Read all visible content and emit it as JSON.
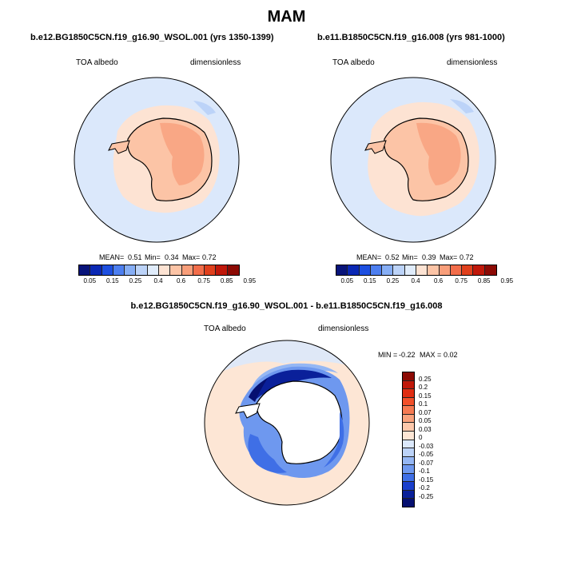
{
  "title": "MAM",
  "panel1": {
    "run": "b.e12.BG1850C5CN.f19_g16.90_WSOL.001 (yrs 1350-1399)",
    "variable": "TOA albedo",
    "units": "dimensionless",
    "mean_label": "MEAN=",
    "mean": "0.51",
    "min_label": "Min=",
    "min": "0.34",
    "max_label": "Max=",
    "max": "0.72"
  },
  "panel2": {
    "run": "b.e11.B1850C5CN.f19_g16.008 (yrs 981-1000)",
    "variable": "TOA albedo",
    "units": "dimensionless",
    "mean_label": "MEAN=",
    "mean": "0.52",
    "min_label": "Min=",
    "min": "0.39",
    "max_label": "Max=",
    "max": "0.72"
  },
  "diff_panel": {
    "run": "b.e12.BG1850C5CN.f19_g16.90_WSOL.001 - b.e11.B1850C5CN.f19_g16.008",
    "variable": "TOA albedo",
    "units": "dimensionless",
    "min_label": "MIN =",
    "min": "-0.22",
    "max_label": "MAX =",
    "max": "0.02"
  },
  "abs_colorbar": {
    "ticks": [
      "0.05",
      "0.15",
      "0.25",
      "0.4",
      "0.6",
      "0.75",
      "0.85",
      "0.95"
    ],
    "colors": [
      "#08147a",
      "#0a28b4",
      "#1d4fe0",
      "#4d7ff0",
      "#86aef5",
      "#bcd3f8",
      "#e0ecfb",
      "#fde3d3",
      "#fcc4a6",
      "#f89e7a",
      "#f26d4a",
      "#e0401d",
      "#c0180a",
      "#8c0a04"
    ]
  },
  "diff_colorbar": {
    "ticks": [
      "0.25",
      "0.2",
      "0.15",
      "0.1",
      "0.07",
      "0.05",
      "0.03",
      "0",
      "-0.03",
      "-0.05",
      "-0.07",
      "-0.1",
      "-0.15",
      "-0.2",
      "-0.25"
    ],
    "colors": [
      "#8c0a04",
      "#c0180a",
      "#e02d12",
      "#f2502a",
      "#f67a52",
      "#f9a27c",
      "#fcc8ab",
      "#fde6d5",
      "#dbe8fb",
      "#bcd3f8",
      "#95b7f4",
      "#6e98ef",
      "#3f6fe6",
      "#1a3fcc",
      "#0a209a",
      "#061070"
    ]
  },
  "chart_data": [
    {
      "type": "heatmap",
      "projection": "south polar stereographic",
      "title": "b.e12.BG1850C5CN.f19_g16.90_WSOL.001 (yrs 1350-1399)",
      "variable": "TOA albedo",
      "units": "dimensionless",
      "mean": 0.51,
      "min": 0.34,
      "max": 0.72,
      "levels": [
        0.05,
        0.15,
        0.25,
        0.4,
        0.6,
        0.75,
        0.85,
        0.95
      ]
    },
    {
      "type": "heatmap",
      "projection": "south polar stereographic",
      "title": "b.e11.B1850C5CN.f19_g16.008 (yrs 981-1000)",
      "variable": "TOA albedo",
      "units": "dimensionless",
      "mean": 0.52,
      "min": 0.39,
      "max": 0.72,
      "levels": [
        0.05,
        0.15,
        0.25,
        0.4,
        0.6,
        0.75,
        0.85,
        0.95
      ]
    },
    {
      "type": "heatmap",
      "projection": "south polar stereographic",
      "title": "b.e12.BG1850C5CN.f19_g16.90_WSOL.001 - b.e11.B1850C5CN.f19_g16.008",
      "variable": "TOA albedo",
      "units": "dimensionless",
      "min": -0.22,
      "max": 0.02,
      "levels": [
        -0.25,
        -0.2,
        -0.15,
        -0.1,
        -0.07,
        -0.05,
        -0.03,
        0,
        0.03,
        0.05,
        0.07,
        0.1,
        0.15,
        0.2,
        0.25
      ]
    }
  ]
}
